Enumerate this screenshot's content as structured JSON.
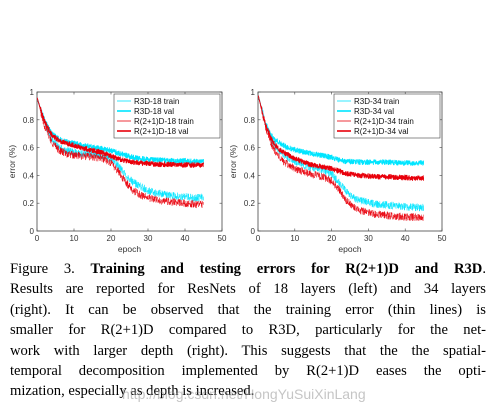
{
  "chart_data": [
    {
      "type": "line",
      "xlabel": "epoch",
      "ylabel": "error (%)",
      "xlim": [
        0,
        50
      ],
      "ylim": [
        0,
        1
      ],
      "xticks": [
        0,
        10,
        20,
        30,
        40,
        50
      ],
      "yticks": [
        0,
        0.2,
        0.4,
        0.6,
        0.8,
        1
      ],
      "legend_position": "top-right",
      "series": [
        {
          "name": "R3D-18 train",
          "color": "#00e5ff",
          "width": 0.8,
          "x": [
            0,
            2,
            4,
            6,
            8,
            10,
            12,
            14,
            16,
            18,
            20,
            22,
            24,
            26,
            28,
            30,
            32,
            34,
            36,
            38,
            40,
            42,
            44,
            45
          ],
          "values": [
            0.96,
            0.78,
            0.66,
            0.6,
            0.58,
            0.565,
            0.56,
            0.555,
            0.55,
            0.54,
            0.52,
            0.47,
            0.4,
            0.35,
            0.32,
            0.29,
            0.275,
            0.265,
            0.255,
            0.25,
            0.245,
            0.24,
            0.24,
            0.24
          ]
        },
        {
          "name": "R3D-18 val",
          "color": "#00e5ff",
          "width": 1.6,
          "x": [
            0,
            2,
            4,
            6,
            8,
            10,
            12,
            14,
            16,
            18,
            20,
            22,
            24,
            26,
            28,
            30,
            32,
            34,
            36,
            38,
            40,
            42,
            44,
            45
          ],
          "values": [
            0.96,
            0.8,
            0.7,
            0.66,
            0.64,
            0.63,
            0.62,
            0.61,
            0.6,
            0.59,
            0.58,
            0.56,
            0.545,
            0.53,
            0.52,
            0.515,
            0.51,
            0.51,
            0.505,
            0.505,
            0.505,
            0.5,
            0.5,
            0.5
          ]
        },
        {
          "name": "R(2+1)D-18 train",
          "color": "#e8000b",
          "width": 0.8,
          "x": [
            0,
            2,
            4,
            6,
            8,
            10,
            12,
            14,
            16,
            18,
            20,
            22,
            24,
            26,
            28,
            30,
            32,
            34,
            36,
            38,
            40,
            42,
            44,
            45
          ],
          "values": [
            0.96,
            0.76,
            0.64,
            0.58,
            0.555,
            0.545,
            0.54,
            0.535,
            0.53,
            0.52,
            0.49,
            0.43,
            0.35,
            0.29,
            0.26,
            0.24,
            0.225,
            0.215,
            0.21,
            0.205,
            0.2,
            0.195,
            0.19,
            0.19
          ]
        },
        {
          "name": "R(2+1)D-18 val",
          "color": "#e8000b",
          "width": 1.6,
          "x": [
            0,
            2,
            4,
            6,
            8,
            10,
            12,
            14,
            16,
            18,
            20,
            22,
            24,
            26,
            28,
            30,
            32,
            34,
            36,
            38,
            40,
            42,
            44,
            45
          ],
          "values": [
            0.96,
            0.79,
            0.69,
            0.65,
            0.63,
            0.615,
            0.6,
            0.585,
            0.575,
            0.56,
            0.54,
            0.52,
            0.505,
            0.495,
            0.49,
            0.485,
            0.48,
            0.48,
            0.48,
            0.475,
            0.475,
            0.475,
            0.475,
            0.475
          ]
        }
      ]
    },
    {
      "type": "line",
      "xlabel": "epoch",
      "ylabel": "error (%)",
      "xlim": [
        0,
        50
      ],
      "ylim": [
        0,
        1
      ],
      "xticks": [
        0,
        10,
        20,
        30,
        40,
        50
      ],
      "yticks": [
        0,
        0.2,
        0.4,
        0.6,
        0.8,
        1
      ],
      "legend_position": "top-right",
      "series": [
        {
          "name": "R3D-34 train",
          "color": "#00e5ff",
          "width": 0.8,
          "x": [
            0,
            2,
            4,
            6,
            8,
            10,
            12,
            14,
            16,
            18,
            20,
            22,
            24,
            26,
            28,
            30,
            32,
            34,
            36,
            38,
            40,
            42,
            44,
            45
          ],
          "values": [
            0.98,
            0.78,
            0.64,
            0.57,
            0.53,
            0.5,
            0.48,
            0.46,
            0.45,
            0.43,
            0.41,
            0.35,
            0.28,
            0.24,
            0.22,
            0.205,
            0.195,
            0.19,
            0.185,
            0.18,
            0.175,
            0.17,
            0.17,
            0.17
          ]
        },
        {
          "name": "R3D-34 val",
          "color": "#00e5ff",
          "width": 1.6,
          "x": [
            0,
            2,
            4,
            6,
            8,
            10,
            12,
            14,
            16,
            18,
            20,
            22,
            24,
            26,
            28,
            30,
            32,
            34,
            36,
            38,
            40,
            42,
            44,
            45
          ],
          "values": [
            0.98,
            0.78,
            0.67,
            0.63,
            0.6,
            0.585,
            0.57,
            0.56,
            0.55,
            0.54,
            0.53,
            0.51,
            0.5,
            0.5,
            0.495,
            0.495,
            0.495,
            0.495,
            0.495,
            0.49,
            0.49,
            0.49,
            0.49,
            0.49
          ]
        },
        {
          "name": "R(2+1)D-34 train",
          "color": "#e8000b",
          "width": 0.8,
          "x": [
            0,
            2,
            4,
            6,
            8,
            10,
            12,
            14,
            16,
            18,
            20,
            22,
            24,
            26,
            28,
            30,
            32,
            34,
            36,
            38,
            40,
            42,
            44,
            45
          ],
          "values": [
            0.98,
            0.75,
            0.6,
            0.52,
            0.48,
            0.45,
            0.43,
            0.41,
            0.4,
            0.385,
            0.36,
            0.3,
            0.22,
            0.17,
            0.145,
            0.13,
            0.12,
            0.115,
            0.11,
            0.105,
            0.1,
            0.1,
            0.1,
            0.1
          ]
        },
        {
          "name": "R(2+1)D-34 val",
          "color": "#e8000b",
          "width": 1.6,
          "x": [
            0,
            2,
            4,
            6,
            8,
            10,
            12,
            14,
            16,
            18,
            20,
            22,
            24,
            26,
            28,
            30,
            32,
            34,
            36,
            38,
            40,
            42,
            44,
            45
          ],
          "values": [
            0.98,
            0.77,
            0.64,
            0.58,
            0.55,
            0.52,
            0.5,
            0.48,
            0.47,
            0.46,
            0.45,
            0.43,
            0.415,
            0.405,
            0.4,
            0.395,
            0.39,
            0.39,
            0.39,
            0.385,
            0.385,
            0.38,
            0.38,
            0.38
          ]
        }
      ]
    }
  ],
  "caption": {
    "lines": [
      [
        {
          "text": "Figure 3. ",
          "bold": false
        },
        {
          "text": "Training and testing errors for R(2+1)D and R3D",
          "bold": true
        },
        {
          "text": ".",
          "bold": false
        }
      ],
      [
        {
          "text": "Results are reported for ResNets of 18 layers (left) and 34 layers",
          "bold": false
        }
      ],
      [
        {
          "text": "(right).  It can be observed that the training error (thin lines) is",
          "bold": false
        }
      ],
      [
        {
          "text": "smaller for R(2+1)D compared to R3D, particularly for the net-",
          "bold": false
        }
      ],
      [
        {
          "text": "work with larger depth (right). This suggests that the the spatial-",
          "bold": false
        }
      ],
      [
        {
          "text": "temporal decomposition implemented by R(2+1)D eases the opti-",
          "bold": false
        }
      ],
      [
        {
          "text": "mization, especially as depth is increased.",
          "bold": false
        }
      ]
    ]
  },
  "watermark": "http://blog.csdn.net/HongYuSuiXinLang"
}
